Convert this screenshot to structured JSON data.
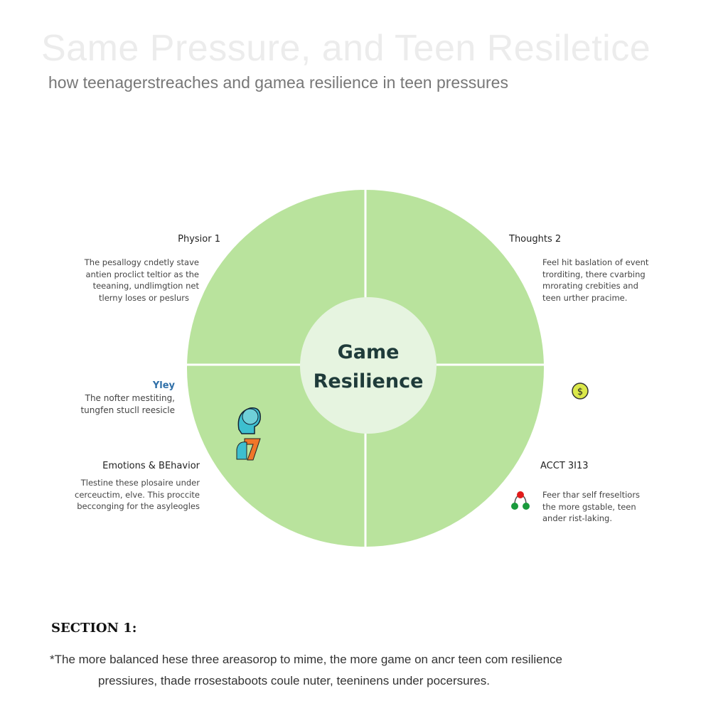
{
  "header": {
    "title": "Same Pressure, and Teen Resiletice",
    "subtitle": "how teenagerstreaches and gamea resilience in teen pressures"
  },
  "diagram": {
    "center_label_line1": "Game",
    "center_label_line2": "Resilience",
    "colors": {
      "quadrant": "#b9e39d",
      "center": "#e6f4e0",
      "divider": "#ffffff"
    },
    "quadrants": [
      {
        "title": "Physior 1",
        "text": [
          "The pesallogy cndetly stave",
          "antien proclict teltior as the",
          "teeaning, undlimgtion net",
          "tlerny loses or peslurs"
        ]
      },
      {
        "title": "Thoughts 2",
        "text": [
          "Feel hit baslation of event",
          "trorditing, there cvarbing",
          "mrorating crebities and",
          "teen urther pracime."
        ]
      },
      {
        "title": "Emotions & BEhavior",
        "text": [
          "Tlestine these plosaire under",
          "cerceuctim, elve. This proccite",
          "becconging for the asyleogles"
        ]
      },
      {
        "title": "ACCT 3I13",
        "text": [
          "Feer thar self freseltiors",
          "the more gstable, teen",
          "ander rist-laking."
        ]
      }
    ],
    "side_note": {
      "title": "Yley",
      "text": [
        "The nofter mestiting,",
        "tungfen stucll reesicle"
      ]
    },
    "icons": [
      "brain-head-icon",
      "head-seven-icon",
      "dollar-coin-icon",
      "network-nodes-icon"
    ]
  },
  "footer": {
    "section_title": "SECTION 1:",
    "note_line1": "*The more balanced hese three areasorop to mime, the more game on ancr teen com resilience",
    "note_line2": "pressiures, thade rrosestaboots coule nuter, teeninens under pocersures."
  }
}
